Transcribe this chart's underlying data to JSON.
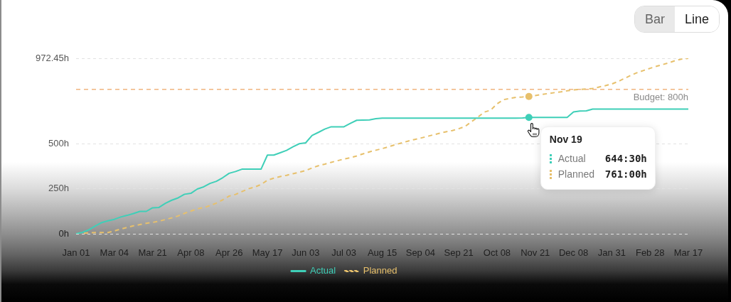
{
  "chart_data": {
    "type": "line",
    "categories": [
      "Jan 01",
      null,
      null,
      null,
      null,
      null,
      "Mar 04",
      null,
      null,
      null,
      null,
      null,
      "Mar 21",
      null,
      null,
      null,
      null,
      null,
      "Apr 08",
      null,
      null,
      null,
      null,
      null,
      "Apr 26",
      null,
      null,
      null,
      null,
      null,
      "May 17",
      null,
      null,
      null,
      null,
      null,
      "Jun 03",
      null,
      null,
      null,
      null,
      null,
      "Jul 03",
      null,
      null,
      null,
      null,
      null,
      "Aug 15",
      null,
      null,
      null,
      null,
      null,
      "Sep 04",
      null,
      null,
      null,
      null,
      null,
      "Sep 21",
      null,
      null,
      null,
      null,
      null,
      "Oct 08",
      null,
      null,
      null,
      null,
      null,
      "Nov 21",
      null,
      null,
      null,
      null,
      null,
      "Dec 08",
      null,
      null,
      null,
      null,
      null,
      "Jan 31",
      null,
      null,
      null,
      null,
      null,
      "Feb 28",
      null,
      null,
      null,
      null,
      null,
      "Mar 17"
    ],
    "series": [
      {
        "name": "Actual",
        "color": "#3fcfb8",
        "values": [
          0,
          8,
          22,
          43,
          62,
          72,
          80,
          93,
          102,
          112,
          124,
          124,
          144,
          146,
          169,
          186,
          199,
          219,
          224,
          248,
          260,
          279,
          291,
          311,
          335,
          345,
          358,
          358,
          358,
          358,
          436,
          436,
          449,
          462,
          482,
          499,
          504,
          545,
          562,
          580,
          593,
          593,
          593,
          612,
          629,
          630,
          631,
          638,
          641,
          641,
          641,
          641,
          641,
          641,
          641,
          641,
          641,
          641,
          641,
          641,
          641,
          641,
          641,
          641,
          641,
          641,
          641,
          641,
          641,
          641,
          642,
          644.5,
          645,
          645,
          645,
          645,
          645,
          645,
          675,
          680,
          681,
          691,
          691,
          691,
          691,
          691,
          691,
          691,
          691,
          691,
          691,
          691,
          691,
          691,
          691,
          691,
          691
        ]
      },
      {
        "name": "Planned",
        "color": "#e7c06c",
        "line_style": "dashed",
        "values": [
          0,
          3,
          5,
          7,
          7,
          7,
          16,
          26,
          35,
          44,
          51,
          58,
          63,
          70,
          79,
          88,
          99,
          113,
          126,
          138,
          145,
          156,
          170,
          188,
          209,
          218,
          234,
          249,
          259,
          273,
          297,
          308,
          317,
          324,
          333,
          341,
          350,
          365,
          377,
          386,
          396,
          405,
          414,
          421,
          431,
          443,
          454,
          463,
          472,
          482,
          493,
          503,
          513,
          522,
          530,
          539,
          548,
          557,
          565,
          572,
          582,
          595,
          621,
          646,
          674,
          685,
          720,
          743,
          750,
          756,
          758,
          761,
          766,
          772,
          777,
          782,
          786,
          792,
          797,
          800,
          802,
          805,
          813,
          821,
          830,
          844,
          861,
          878,
          893,
          905,
          917,
          928,
          938,
          948,
          960,
          968,
          972.45
        ]
      }
    ],
    "ylim": [
      0,
      972.45
    ],
    "yticks": [
      {
        "value": 0,
        "label": "0h"
      },
      {
        "value": 250,
        "label": "250h"
      },
      {
        "value": 500,
        "label": "500h"
      },
      {
        "value": 972.45,
        "label": "972.45h"
      }
    ],
    "grid": "y",
    "legend": "bottom",
    "ref_lines": [
      {
        "axis": "y",
        "value": 800,
        "label": "Budget: 800h",
        "color": "#f0b47e",
        "line_style": "dashed"
      }
    ],
    "annotations": [
      "Bar",
      "Line",
      "Nov 19",
      "644:30h",
      "761:00h"
    ]
  }
}
